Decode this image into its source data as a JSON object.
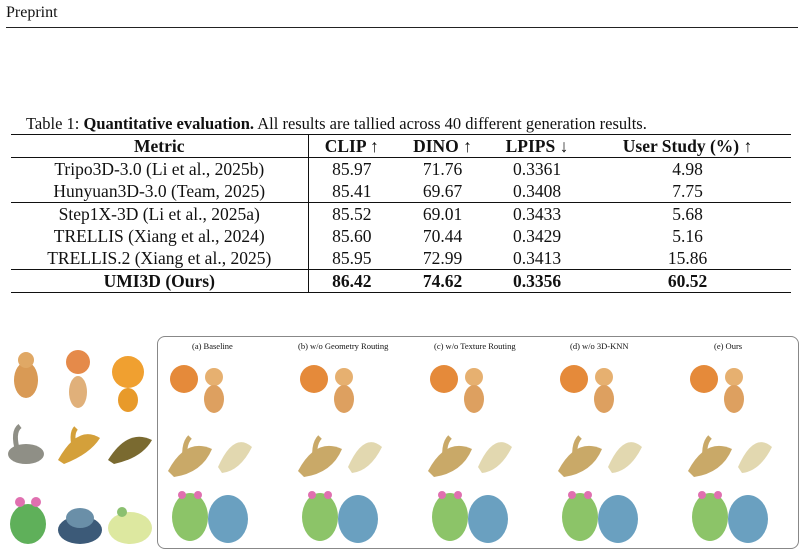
{
  "header": {
    "label": "Preprint"
  },
  "table": {
    "caption_prefix": "Table 1:",
    "caption_bold": "Quantitative evaluation.",
    "caption_rest": "All results are tallied across 40 different generation results.",
    "columns": [
      "Metric",
      "CLIP ↑",
      "DINO ↑",
      "LPIPS ↓",
      "User Study (%) ↑"
    ],
    "group1": [
      [
        "Tripo3D-3.0 (Li et al., 2025b)",
        "85.97",
        "71.76",
        "0.3361",
        "4.98"
      ],
      [
        "Hunyuan3D-3.0 (Team, 2025)",
        "85.41",
        "69.67",
        "0.3408",
        "7.75"
      ]
    ],
    "group2": [
      [
        "Step1X-3D (Li et al., 2025a)",
        "85.52",
        "69.01",
        "0.3433",
        "5.68"
      ],
      [
        "TRELLIS (Xiang et al., 2024)",
        "85.60",
        "70.44",
        "0.3429",
        "5.16"
      ],
      [
        "TRELLIS.2 (Xiang et al., 2025)",
        "85.95",
        "72.99",
        "0.3413",
        "15.86"
      ]
    ],
    "ours": [
      "UMI3D (Ours)",
      "86.42",
      "74.62",
      "0.3356",
      "60.52"
    ]
  },
  "figure": {
    "columns": [
      "(a) Baseline",
      "(b) w/o Geometry Routing",
      "(c) w/o Texture Routing",
      "(d) w/o 3D-KNN",
      "(e) Ours"
    ]
  }
}
